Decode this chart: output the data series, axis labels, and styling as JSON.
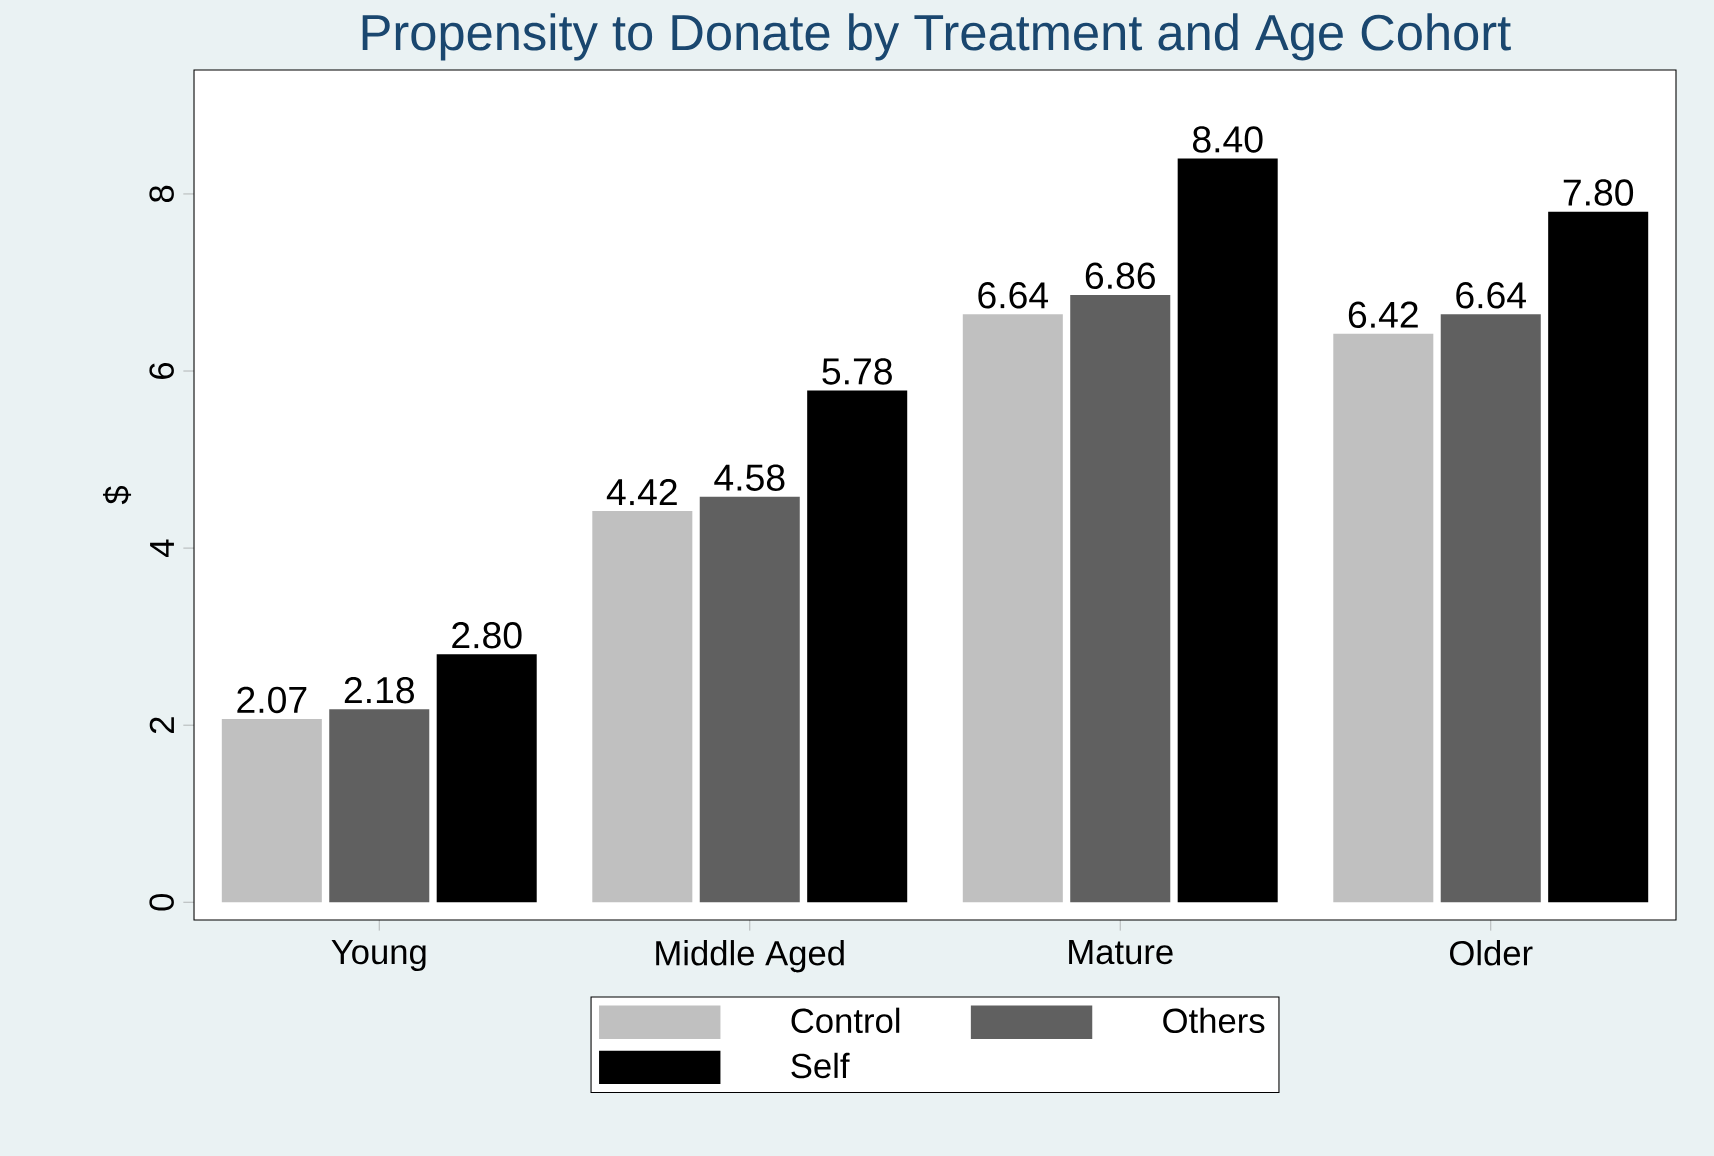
{
  "chart_data": {
    "type": "bar",
    "title": "Propensity to Donate by Treatment and Age Cohort",
    "ylabel": "$",
    "categories": [
      "Young",
      "Middle Aged",
      "Mature",
      "Older"
    ],
    "series": [
      {
        "name": "Control",
        "color": "#c0c0c0",
        "values": [
          2.07,
          4.42,
          6.64,
          6.42
        ],
        "value_labels": [
          "2.07",
          "4.42",
          "6.64",
          "6.42"
        ]
      },
      {
        "name": "Others",
        "color": "#606060",
        "values": [
          2.18,
          4.58,
          6.86,
          6.64
        ],
        "value_labels": [
          "2.18",
          "4.58",
          "6.86",
          "6.64"
        ]
      },
      {
        "name": "Self",
        "color": "#000000",
        "values": [
          2.8,
          5.78,
          8.4,
          7.8
        ],
        "value_labels": [
          "2.80",
          "5.78",
          "8.40",
          "7.80"
        ]
      }
    ],
    "ylim": [
      -0.2,
      9.4
    ],
    "yticks": [
      0,
      2,
      4,
      6,
      8
    ],
    "legend": "bottom"
  }
}
